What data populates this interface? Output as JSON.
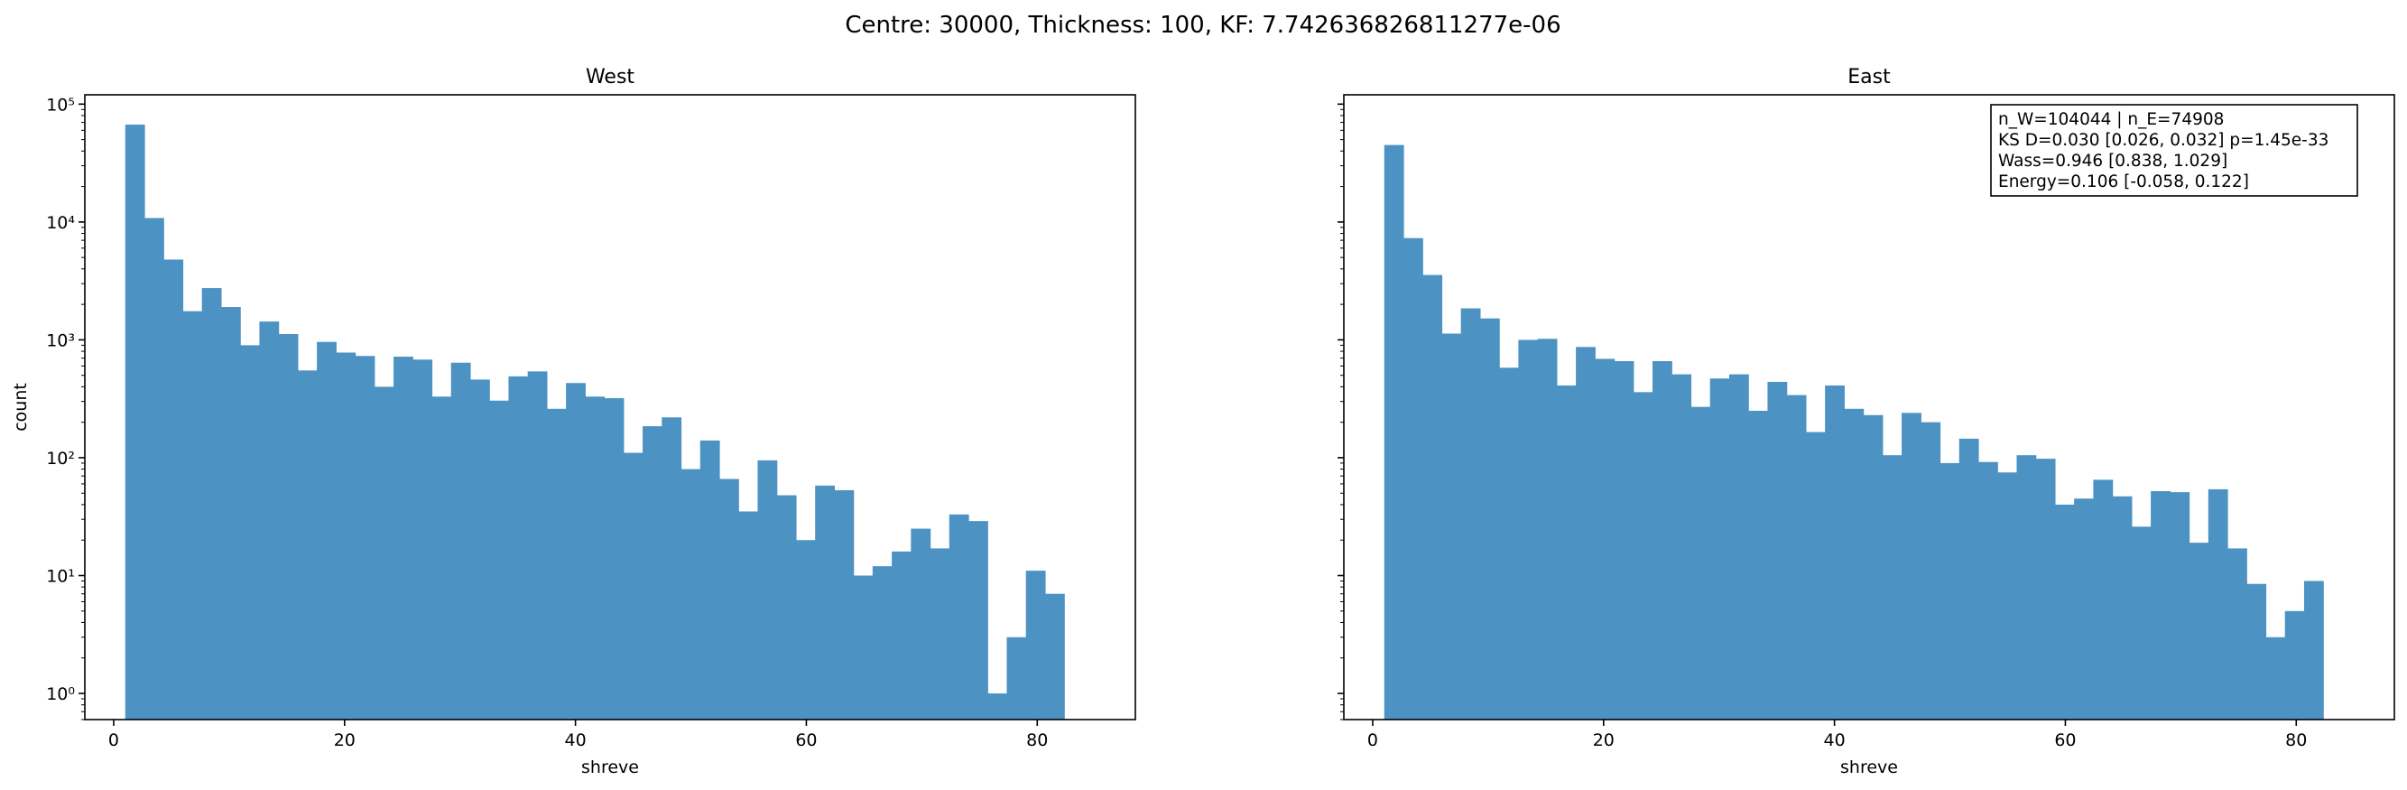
{
  "figure": {
    "suptitle": "Centre: 30000, Thickness: 100, KF: 7.742636826811277e-06"
  },
  "chart_data": [
    {
      "type": "bar",
      "title": "West",
      "xlabel": "shreve",
      "ylabel": "count",
      "yscale": "log",
      "xlim": [
        -2.5,
        88.5
      ],
      "ylim": [
        0.6,
        120000
      ],
      "xticks": [
        0,
        20,
        40,
        60,
        80
      ],
      "xtick_labels": [
        "0",
        "20",
        "40",
        "60",
        "80"
      ],
      "yticks": [
        1,
        10,
        100,
        1000,
        10000,
        100000
      ],
      "ytick_labels": [
        "10⁰",
        "10¹",
        "10²",
        "10³",
        "10⁴",
        "10⁵"
      ],
      "bin_edges_start": 1,
      "bin_width": 1.66,
      "bar_color": "#4c92c3",
      "values": [
        67000,
        10800,
        4800,
        1750,
        2750,
        1900,
        900,
        1430,
        1120,
        550,
        960,
        780,
        730,
        400,
        720,
        680,
        330,
        640,
        460,
        305,
        490,
        540,
        260,
        430,
        330,
        320,
        110,
        185,
        220,
        80,
        140,
        66,
        35,
        95,
        48,
        20,
        58,
        53,
        10,
        12,
        16,
        25,
        17,
        33,
        29,
        1,
        3,
        11,
        7
      ]
    },
    {
      "type": "bar",
      "title": "East",
      "xlabel": "shreve",
      "ylabel": "",
      "yscale": "log",
      "xlim": [
        -2.5,
        88.5
      ],
      "ylim": [
        0.6,
        120000
      ],
      "xticks": [
        0,
        20,
        40,
        60,
        80
      ],
      "xtick_labels": [
        "0",
        "20",
        "40",
        "60",
        "80"
      ],
      "yticks": [
        1,
        10,
        100,
        1000,
        10000,
        100000
      ],
      "ytick_labels": [
        "",
        "",
        "",
        "",
        "",
        ""
      ],
      "bin_edges_start": 1,
      "bin_width": 1.66,
      "bar_color": "#4c92c3",
      "values": [
        45000,
        7300,
        3550,
        1130,
        1850,
        1520,
        580,
        1000,
        1020,
        410,
        870,
        690,
        660,
        360,
        660,
        510,
        270,
        470,
        510,
        250,
        440,
        340,
        165,
        410,
        260,
        230,
        105,
        240,
        200,
        90,
        145,
        92,
        75,
        105,
        98,
        40,
        45,
        65,
        47,
        26,
        52,
        51,
        19,
        54,
        17,
        8.5,
        3,
        5,
        9
      ],
      "annotation": [
        "n_W=104044 | n_E=74908",
        "KS D=0.030 [0.026, 0.032]  p=1.45e-33",
        "Wass=0.946 [0.838, 1.029]",
        "Energy=0.106 [-0.058, 0.122]"
      ]
    }
  ]
}
